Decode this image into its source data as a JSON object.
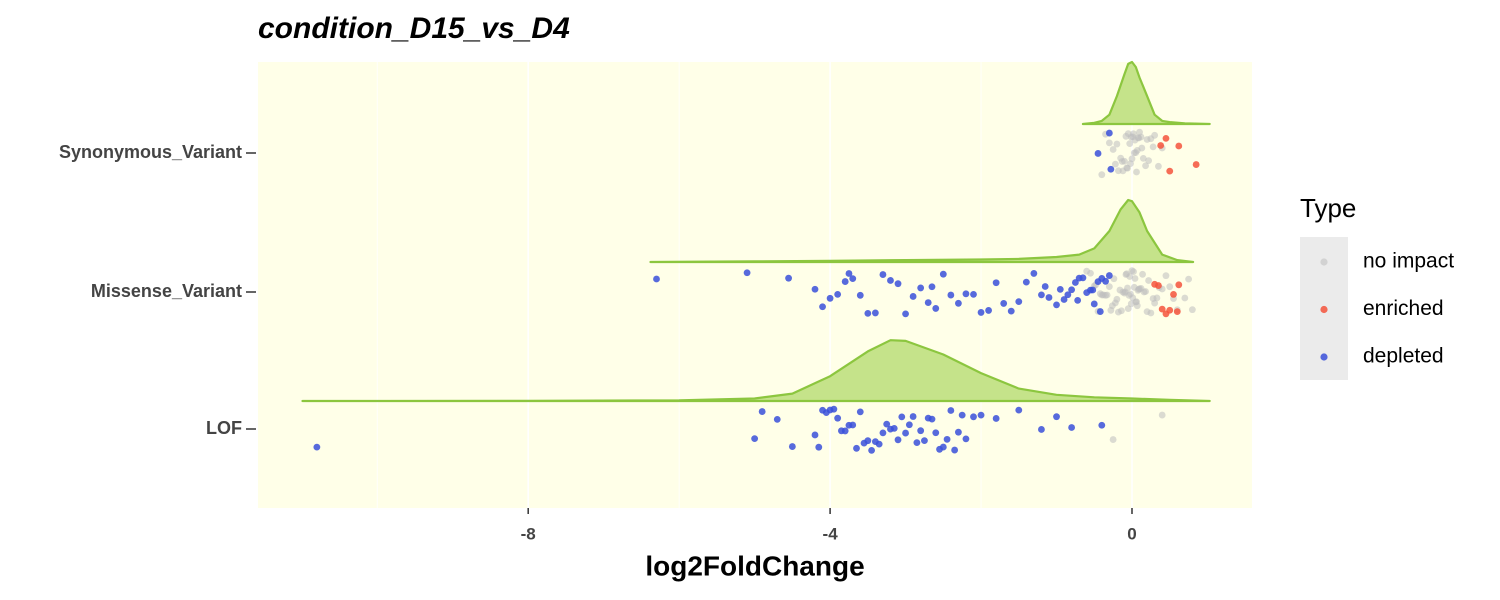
{
  "chart_data": {
    "type": "raincloud",
    "title": "condition_D15_vs_D4",
    "x_label": "log2FoldChange",
    "xlim": [
      -11.58,
      1.59
    ],
    "xticks": [
      -8,
      -4,
      0
    ],
    "minor_xticks": [
      -10,
      -6,
      -2
    ],
    "grid": true,
    "background": "#ffffe8",
    "categories": [
      "LOF",
      "Missense_Variant",
      "Synonymous_Variant"
    ],
    "density_color": "#8cc63f",
    "density_fill": "#c5e38a",
    "densities": [
      {
        "x": [
          -10.99,
          -8,
          -6,
          -5,
          -4.5,
          -4,
          -3.5,
          -3.2,
          -3,
          -2.5,
          -2,
          -1.5,
          -1,
          -0.5,
          0,
          0.5,
          1.03
        ],
        "y": [
          0,
          0.003,
          0.01,
          0.04,
          0.12,
          0.4,
          0.8,
          0.98,
          0.97,
          0.75,
          0.45,
          0.2,
          0.1,
          0.06,
          0.04,
          0.02,
          0
        ]
      },
      {
        "x": [
          -6.38,
          -5,
          -4,
          -3,
          -2,
          -1.5,
          -1,
          -0.7,
          -0.5,
          -0.3,
          -0.15,
          -0.05,
          0,
          0.1,
          0.2,
          0.4,
          0.6,
          0.81
        ],
        "y": [
          0,
          0.01,
          0.02,
          0.03,
          0.04,
          0.05,
          0.08,
          0.12,
          0.22,
          0.5,
          0.85,
          1.0,
          0.98,
          0.8,
          0.5,
          0.12,
          0.03,
          0
        ]
      },
      {
        "x": [
          -0.65,
          -0.5,
          -0.4,
          -0.3,
          -0.2,
          -0.1,
          -0.05,
          0,
          0.05,
          0.1,
          0.2,
          0.3,
          0.4,
          0.5,
          0.7,
          1.03
        ],
        "y": [
          0,
          0.02,
          0.05,
          0.15,
          0.45,
          0.8,
          0.97,
          1.0,
          0.92,
          0.75,
          0.45,
          0.15,
          0.05,
          0.03,
          0.01,
          0
        ]
      }
    ],
    "legend_title": "Type",
    "series": [
      {
        "name": "no impact",
        "color": "#bdbdbd",
        "values": [
          [
            0.4,
            -0.25
          ],
          [
            -0.6,
            -0.55,
            -0.5,
            -0.48,
            -0.45,
            -0.42,
            -0.4,
            -0.38,
            -0.35,
            -0.33,
            -0.3,
            -0.28,
            -0.26,
            -0.24,
            -0.22,
            -0.2,
            -0.18,
            -0.16,
            -0.14,
            -0.12,
            -0.1,
            -0.09,
            -0.08,
            -0.07,
            -0.06,
            -0.05,
            -0.04,
            -0.03,
            -0.02,
            -0.01,
            0,
            0.01,
            0.02,
            0.03,
            0.04,
            0.05,
            0.06,
            0.07,
            0.08,
            0.09,
            0.1,
            0.12,
            0.14,
            0.16,
            0.18,
            0.2,
            0.22,
            0.25,
            0.28,
            0.3,
            0.33,
            0.36,
            0.4,
            0.45,
            0.5,
            0.55,
            0.6,
            0.7,
            0.75,
            0.8
          ],
          [
            -0.3,
            -0.25,
            -0.2,
            -0.18,
            -0.15,
            -0.12,
            -0.1,
            -0.08,
            -0.06,
            -0.05,
            -0.03,
            -0.02,
            0,
            0.01,
            0.02,
            0.04,
            0.05,
            0.07,
            0.09,
            0.1,
            0.12,
            0.15,
            0.18,
            0.2,
            0.25,
            0.3,
            -0.4,
            -0.35,
            0.35,
            0.4,
            -0.22,
            -0.07,
            0.03,
            0.08,
            0.13,
            -0.13,
            0.06,
            -0.01,
            0.22,
            0.28
          ]
        ]
      },
      {
        "name": "enriched",
        "color": "#f4543c",
        "values": [
          [],
          [
            0.3,
            0.35,
            0.4,
            0.45,
            0.5,
            0.55,
            0.6,
            0.62
          ],
          [
            0.38,
            0.45,
            0.5,
            0.62,
            0.85
          ]
        ]
      },
      {
        "name": "depleted",
        "color": "#3a50d9",
        "values": [
          [
            -10.8,
            -5.0,
            -4.9,
            -4.7,
            -4.5,
            -4.2,
            -4.15,
            -4.1,
            -4.05,
            -4.0,
            -3.95,
            -3.9,
            -3.85,
            -3.8,
            -3.75,
            -3.7,
            -3.65,
            -3.6,
            -3.55,
            -3.5,
            -3.45,
            -3.4,
            -3.35,
            -3.3,
            -3.25,
            -3.2,
            -3.15,
            -3.1,
            -3.05,
            -3.0,
            -2.95,
            -2.9,
            -2.85,
            -2.8,
            -2.75,
            -2.7,
            -2.65,
            -2.6,
            -2.55,
            -2.5,
            -2.45,
            -2.4,
            -2.35,
            -2.3,
            -2.25,
            -2.2,
            -2.1,
            -2.0,
            -1.8,
            -1.5,
            -1.2,
            -1.0,
            -0.8,
            -0.4
          ],
          [
            -6.3,
            -5.1,
            -4.55,
            -4.2,
            -4.1,
            -4.0,
            -3.9,
            -3.8,
            -3.75,
            -3.7,
            -3.6,
            -3.5,
            -3.4,
            -3.3,
            -3.2,
            -3.1,
            -3.0,
            -2.9,
            -2.8,
            -2.7,
            -2.65,
            -2.6,
            -2.5,
            -2.4,
            -2.3,
            -2.2,
            -2.1,
            -2.0,
            -1.9,
            -1.8,
            -1.7,
            -1.6,
            -1.5,
            -1.4,
            -1.3,
            -1.2,
            -1.15,
            -1.1,
            -1.0,
            -0.95,
            -0.9,
            -0.85,
            -0.8,
            -0.75,
            -0.72,
            -0.7,
            -0.65,
            -0.6,
            -0.55,
            -0.52,
            -0.5,
            -0.45,
            -0.42,
            -0.4,
            -0.35,
            -0.3
          ],
          [
            -0.45,
            -0.3,
            -0.28
          ]
        ]
      }
    ]
  }
}
